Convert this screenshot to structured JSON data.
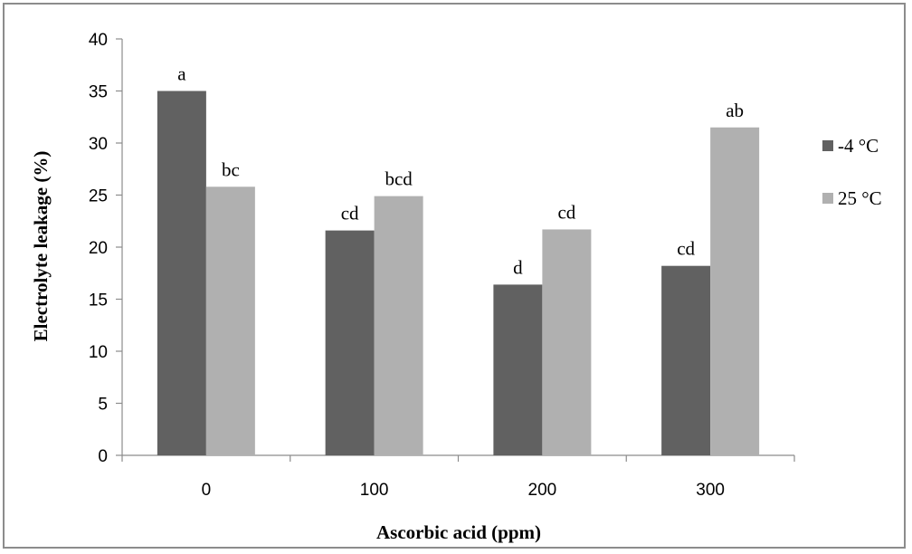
{
  "chart_data": {
    "type": "bar",
    "xlabel": "Ascorbic acid (ppm)",
    "ylabel": "Electrolyte leakage (%)",
    "categories": [
      "0",
      "100",
      "200",
      "300"
    ],
    "ylim": [
      0,
      40
    ],
    "yticks": [
      "0",
      "5",
      "10",
      "15",
      "20",
      "25",
      "30",
      "35",
      "40"
    ],
    "grid": false,
    "legend_position": "right",
    "series": [
      {
        "name": "-4 °C",
        "color": "#616161",
        "values": [
          35.0,
          21.6,
          16.4,
          18.2
        ],
        "labels": [
          "a",
          "cd",
          "d",
          "cd"
        ]
      },
      {
        "name": "25 °C",
        "color": "#b0b0b0",
        "values": [
          25.8,
          24.9,
          21.7,
          31.5
        ],
        "labels": [
          "bc",
          "bcd",
          "cd",
          "ab"
        ]
      }
    ]
  }
}
